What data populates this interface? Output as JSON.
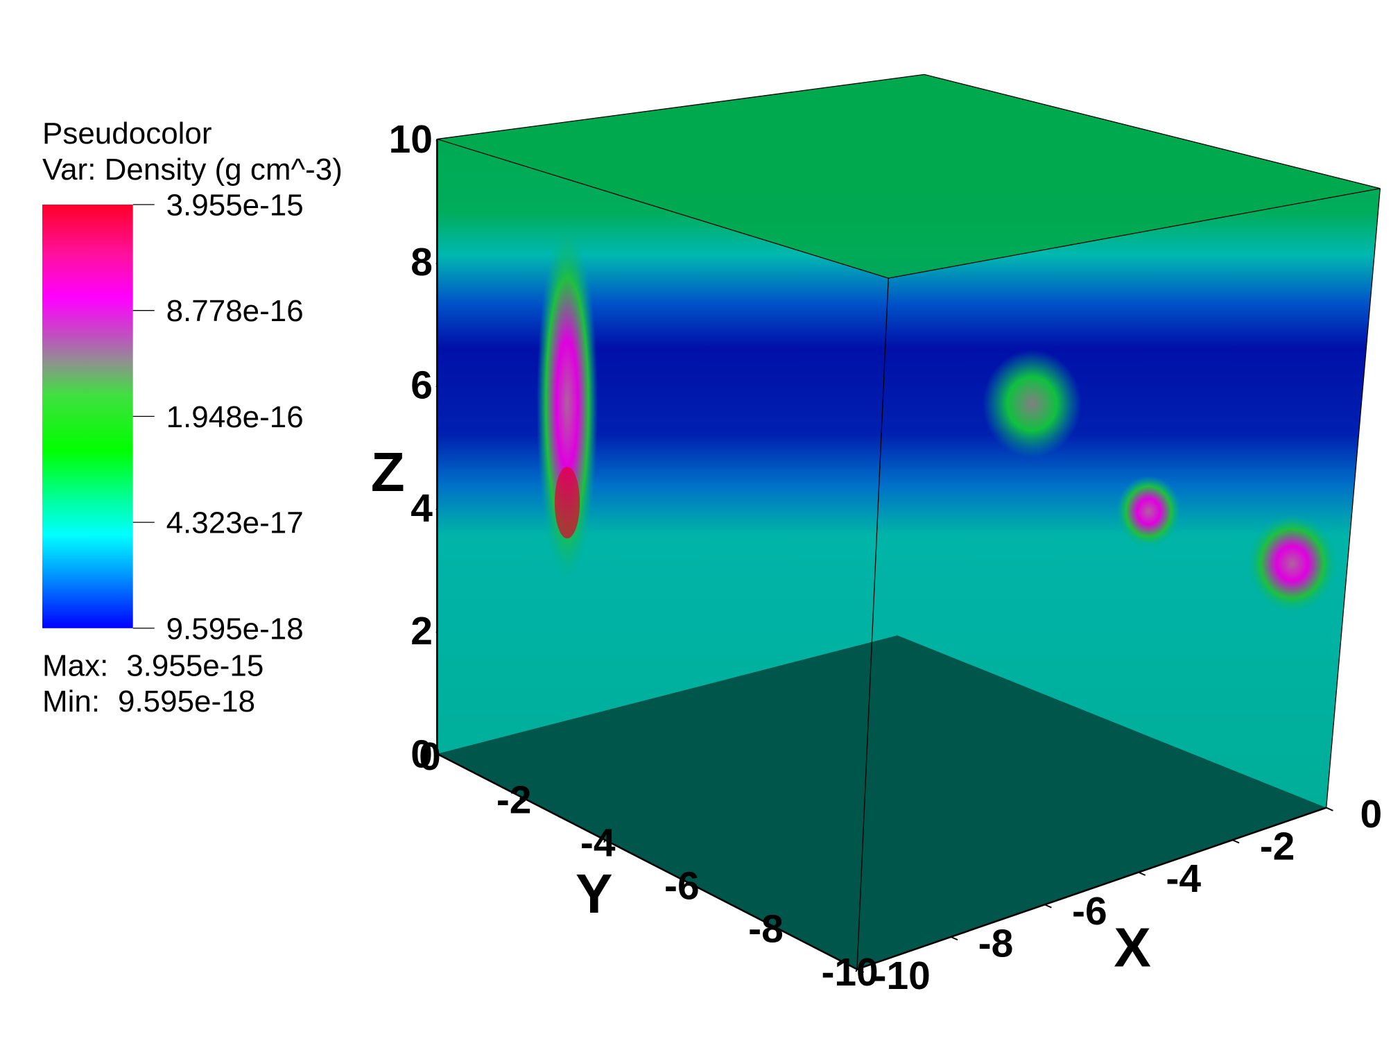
{
  "chart_data": {
    "type": "volume",
    "title": "Pseudocolor",
    "subtitle": "Var: Density (g cm^-3)",
    "colorbar": {
      "log": true,
      "ticks": [
        3.955e-15,
        8.778e-16,
        1.948e-16,
        4.323e-17,
        9.595e-18
      ]
    },
    "max_label": "Max:",
    "max": 3.955e-15,
    "min_label": "Min:",
    "min": 9.595e-18,
    "xlabel": "X",
    "ylabel": "Y",
    "zlabel": "Z",
    "xlim": [
      -10,
      0
    ],
    "xticks": [
      -10,
      -8,
      -6,
      -4,
      -2,
      0
    ],
    "ylim": [
      -10,
      0
    ],
    "yticks": [
      -10,
      -8,
      -6,
      -4,
      -2,
      0
    ],
    "zlim": [
      0,
      10
    ],
    "zticks": [
      0,
      2,
      4,
      6,
      8,
      10
    ]
  }
}
